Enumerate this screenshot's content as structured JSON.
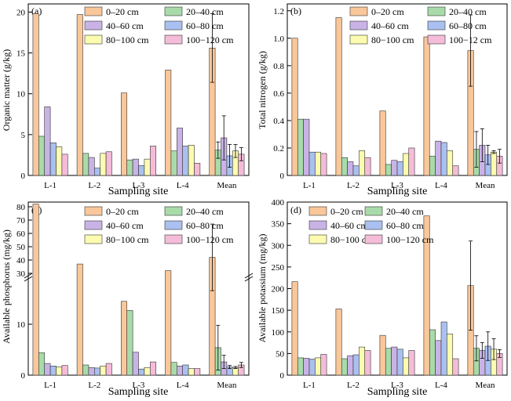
{
  "colors": [
    "#f9c79a",
    "#a8dba9",
    "#c9b3e6",
    "#a9c0f0",
    "#fcfcb0",
    "#f5bcd9"
  ],
  "chart_data": [
    {
      "type": "bar",
      "panel_label": "(a)",
      "ylabel": "Organic matter (g/kg)",
      "xlabel": "Sampling site",
      "categories": [
        "L-1",
        "L-2",
        "L-3",
        "L-4",
        "Mean"
      ],
      "ylim": [
        0,
        21
      ],
      "yticks": [
        0,
        5,
        10,
        15,
        20
      ],
      "legend_position": "top",
      "series": [
        {
          "name": "0–20 cm",
          "values": [
            19.8,
            19.7,
            10.1,
            12.9,
            15.6
          ],
          "mean_error": 4.2
        },
        {
          "name": "20–40 cm",
          "values": [
            4.8,
            2.7,
            1.9,
            3.0,
            3.1
          ],
          "mean_error": 1.0
        },
        {
          "name": "40–60 cm",
          "values": [
            8.4,
            2.2,
            2.0,
            5.8,
            4.6
          ],
          "mean_error": 2.7
        },
        {
          "name": "60–80 cm",
          "values": [
            4.0,
            0.9,
            1.2,
            3.6,
            2.4
          ],
          "mean_error": 1.4
        },
        {
          "name": "80−100 cm",
          "values": [
            3.5,
            2.7,
            2.0,
            3.7,
            3.0
          ],
          "mean_error": 0.8
        },
        {
          "name": "100−120 cm",
          "values": [
            2.6,
            2.9,
            3.6,
            1.5,
            2.6
          ],
          "mean_error": 0.8
        }
      ]
    },
    {
      "type": "bar",
      "panel_label": "(b)",
      "ylabel": "Total nitrogen (g/kg)",
      "xlabel": "Sampling site",
      "categories": [
        "L-1",
        "L-2",
        "L-3",
        "L-4",
        "Mean"
      ],
      "ylim": [
        0,
        1.25
      ],
      "yticks": [
        "0",
        "0.2",
        "0.4",
        "0.6",
        "0.8",
        "1.0",
        "1.2"
      ],
      "legend_position": "top",
      "series": [
        {
          "name": "0–20 cm",
          "values": [
            1.0,
            1.15,
            0.47,
            1.01,
            0.91
          ],
          "mean_error": 0.26
        },
        {
          "name": "20–40 cm",
          "values": [
            0.41,
            0.13,
            0.08,
            0.14,
            0.19
          ],
          "mean_error": 0.13
        },
        {
          "name": "40–60 cm",
          "values": [
            0.41,
            0.1,
            0.11,
            0.25,
            0.22
          ],
          "mean_error": 0.12
        },
        {
          "name": "60–80 cm",
          "values": [
            0.17,
            0.07,
            0.1,
            0.24,
            0.15
          ],
          "mean_error": 0.07
        },
        {
          "name": "80−100 cm",
          "values": [
            0.17,
            0.18,
            0.16,
            0.18,
            0.17
          ],
          "mean_error": 0.01
        },
        {
          "name": "100−12 cm",
          "values": [
            0.16,
            0.13,
            0.2,
            0.07,
            0.14
          ],
          "mean_error": 0.05
        }
      ]
    },
    {
      "type": "bar",
      "panel_label": "(c)",
      "ylabel": "Available phosphorus (mg/kg)",
      "xlabel": "Sampling site",
      "categories": [
        "L-1",
        "L-2",
        "L-3",
        "L-4",
        "Mean"
      ],
      "axis_break": true,
      "yticks_lower": [
        0,
        10
      ],
      "yticks_upper": [
        30,
        40,
        50,
        60,
        70,
        80
      ],
      "legend_position": "top",
      "series": [
        {
          "name": "0–20 cm",
          "values": [
            82,
            37,
            14.5,
            32,
            42
          ],
          "mean_error": 25
        },
        {
          "name": "20–40 cm",
          "values": [
            4.4,
            2.0,
            12.7,
            2.5,
            5.4
          ],
          "mean_error": 4.4
        },
        {
          "name": "40–60 cm",
          "values": [
            2.3,
            1.5,
            4.5,
            1.8,
            2.6
          ],
          "mean_error": 1.3
        },
        {
          "name": "60–80 cm",
          "values": [
            1.8,
            1.4,
            1.2,
            2.0,
            1.6
          ],
          "mean_error": 0.3
        },
        {
          "name": "80−100 cm",
          "values": [
            1.6,
            1.8,
            1.5,
            1.3,
            1.5
          ],
          "mean_error": 0.2
        },
        {
          "name": "100−120 cm",
          "values": [
            1.9,
            2.3,
            2.6,
            1.3,
            2.0
          ],
          "mean_error": 0.5
        }
      ]
    },
    {
      "type": "bar",
      "panel_label": "(d)",
      "ylabel": "Available potassium (mg/kg)",
      "xlabel": "Sampling site",
      "categories": [
        "L-1",
        "L-2",
        "L-3",
        "L-4",
        "Mean"
      ],
      "ylim": [
        0,
        400
      ],
      "yticks": [
        0,
        50,
        100,
        150,
        200,
        250,
        300,
        350,
        400
      ],
      "legend_position": "top",
      "series": [
        {
          "name": "0–20 cm",
          "values": [
            216,
            153,
            92,
            368,
            207
          ],
          "mean_error": 103
        },
        {
          "name": "20–40 cm",
          "values": [
            40,
            38,
            62,
            105,
            62
          ],
          "mean_error": 29
        },
        {
          "name": "40–60 cm",
          "values": [
            39,
            45,
            65,
            80,
            57
          ],
          "mean_error": 18
        },
        {
          "name": "60–80 cm",
          "values": [
            37,
            47,
            60,
            123,
            67
          ],
          "mean_error": 33
        },
        {
          "name": "80−100 cm",
          "values": [
            40,
            65,
            40,
            95,
            60
          ],
          "mean_error": 24
        },
        {
          "name": "100−120 cm",
          "values": [
            48,
            57,
            57,
            38,
            50
          ],
          "mean_error": 9
        }
      ]
    }
  ]
}
